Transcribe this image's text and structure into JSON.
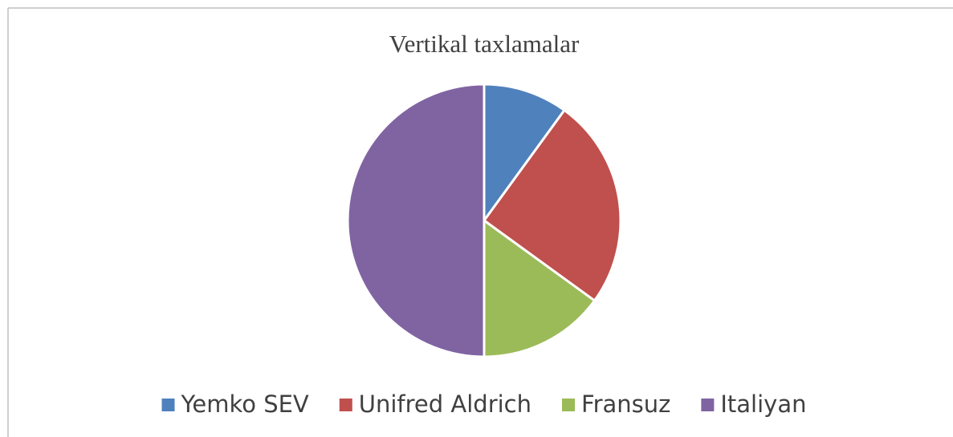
{
  "chart_data": {
    "type": "pie",
    "title": "Vertikal taxlamalar",
    "categories": [
      "Yemko SEV",
      "Unifred Aldrich",
      "Fransuz",
      "Italiyan"
    ],
    "values": [
      10,
      25,
      15,
      50
    ],
    "colors": [
      "#4f81bd",
      "#c0504d",
      "#9bbb59",
      "#8064a2"
    ],
    "legend": "bottom"
  }
}
